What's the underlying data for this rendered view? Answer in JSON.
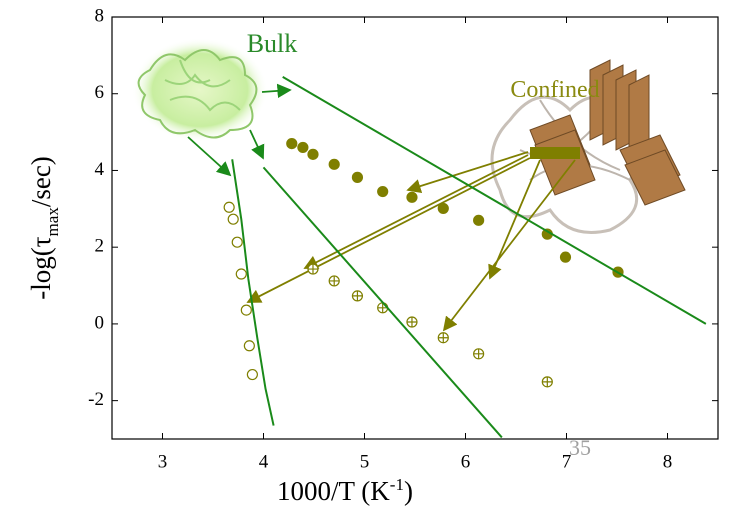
{
  "page_number": "35",
  "chart_data": {
    "type": "scatter",
    "x_label": {
      "main": "1000/T (K",
      "sup": "-1",
      "tail": ")"
    },
    "y_label": {
      "main": "-log(τ",
      "sub": "max",
      "tail": "/sec)"
    },
    "annotations": [
      "Bulk",
      "Confined"
    ],
    "xlim": [
      2.5,
      8.5
    ],
    "ylim": [
      -3,
      8
    ],
    "xticks": [
      3,
      4,
      5,
      6,
      7,
      8
    ],
    "yticks": [
      -2,
      0,
      2,
      4,
      6,
      8
    ],
    "series": [
      {
        "marker": "filled",
        "color": "#7f7f00",
        "x": [
          4.28,
          4.39,
          4.49,
          4.7,
          4.93,
          5.18,
          5.47,
          5.78,
          6.13,
          6.81,
          6.99,
          7.51
        ],
        "values": [
          4.7,
          4.6,
          4.42,
          4.16,
          3.82,
          3.45,
          3.3,
          3.01,
          2.7,
          2.34,
          1.74,
          1.35
        ]
      },
      {
        "marker": "open",
        "color": "#7f7f00",
        "x": [
          3.66,
          3.7,
          3.74,
          3.78,
          3.83,
          3.86,
          3.89
        ],
        "values": [
          3.04,
          2.73,
          2.13,
          1.3,
          0.36,
          -0.57,
          -1.32
        ]
      },
      {
        "marker": "crossed",
        "color": "#7f7f00",
        "x": [
          4.49,
          4.7,
          4.93,
          5.18,
          5.47,
          5.78,
          6.13,
          6.81
        ],
        "values": [
          1.43,
          1.12,
          0.73,
          0.42,
          0.05,
          -0.36,
          -0.78,
          -1.51
        ]
      },
      {
        "marker": "line",
        "color": "#1a8a1a",
        "x": [
          3.69,
          3.78,
          3.85,
          3.94,
          4.02,
          4.1
        ],
        "values": [
          4.29,
          2.73,
          1.17,
          -0.39,
          -1.69,
          -2.65
        ]
      },
      {
        "marker": "line",
        "color": "#1a8a1a",
        "x": [
          4.0,
          6.36
        ],
        "values": [
          4.08,
          -2.96
        ]
      },
      {
        "marker": "line",
        "color": "#1a8a1a",
        "x": [
          4.19,
          8.38
        ],
        "values": [
          6.44,
          0
        ]
      }
    ]
  }
}
